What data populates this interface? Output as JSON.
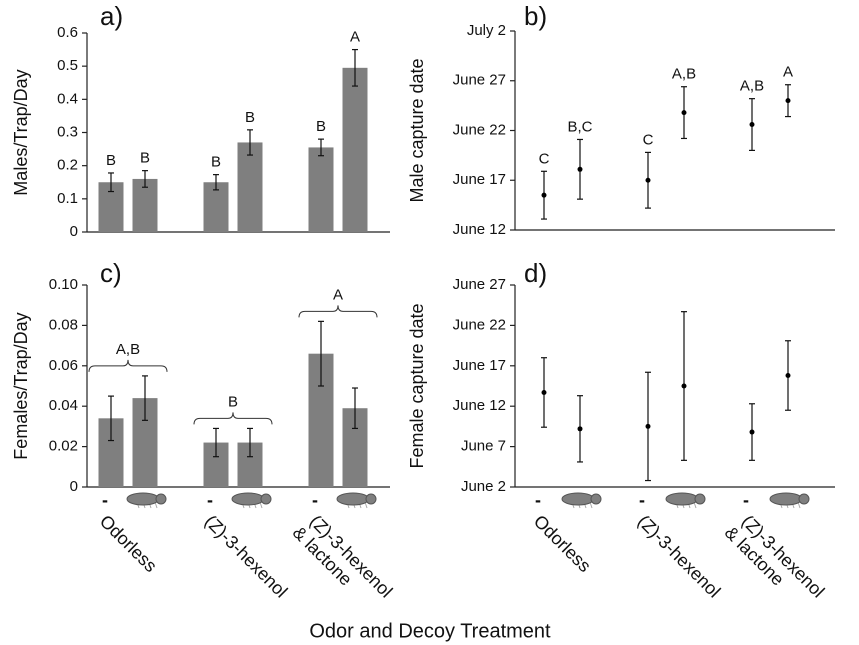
{
  "figure": {
    "xlabel": "Odor and Decoy Treatment",
    "group_labels": [
      [
        "Odorless"
      ],
      [
        "(Z)-3-hexenol"
      ],
      [
        "(Z)-3-hexenol",
        "& lactone"
      ]
    ]
  },
  "chart_data": [
    {
      "type": "bar",
      "panel_label": "a)",
      "ylabel": "Males/Trap/Day",
      "color": "#7f7f7f",
      "values": [
        0.15,
        0.16,
        0.15,
        0.27,
        0.255,
        0.495
      ],
      "errors": [
        0.028,
        0.025,
        0.023,
        0.038,
        0.025,
        0.055
      ],
      "annotations": [
        "B",
        "B",
        "B",
        "B",
        "B",
        "A"
      ],
      "ylim": [
        0,
        0.6
      ],
      "yticks": [
        0,
        0.1,
        0.2,
        0.3,
        0.4,
        0.5,
        0.6
      ]
    },
    {
      "type": "errorbar",
      "panel_label": "b)",
      "ylabel": "Male capture date",
      "color": "#000000",
      "values": [
        15.5,
        18.1,
        17,
        23.8,
        22.6,
        25
      ],
      "errors": [
        2.4,
        3,
        2.8,
        2.6,
        2.6,
        1.6
      ],
      "annotations": [
        "C",
        "B,C",
        "C",
        "A,B",
        "A,B",
        "A"
      ],
      "ylim": [
        12,
        32
      ],
      "yticks": [
        {
          "value": 12,
          "label": "June 12"
        },
        {
          "value": 17,
          "label": "June 17"
        },
        {
          "value": 22,
          "label": "June 22"
        },
        {
          "value": 27,
          "label": "June 27"
        },
        {
          "value": 32,
          "label": "July 2"
        }
      ]
    },
    {
      "type": "bar",
      "panel_label": "c)",
      "ylabel": "Females/Trap/Day",
      "color": "#7f7f7f",
      "categories": [
        "-",
        null,
        "-",
        null,
        "-",
        null
      ],
      "values": [
        0.034,
        0.044,
        0.022,
        0.022,
        0.066,
        0.039
      ],
      "errors": [
        0.011,
        0.011,
        0.007,
        0.007,
        0.016,
        0.01
      ],
      "group_annotations": [
        "A,B",
        "B",
        "A"
      ],
      "ylim": [
        0,
        0.1
      ],
      "yticks": [
        0,
        0.02,
        0.04,
        0.06,
        0.08,
        {
          "value": 0.1,
          "label": "0.10"
        }
      ]
    },
    {
      "type": "errorbar",
      "panel_label": "d)",
      "ylabel": "Female capture date",
      "color": "#000000",
      "categories": [
        "-",
        null,
        "-",
        null,
        "-",
        null
      ],
      "values": [
        13.7,
        9.2,
        9.5,
        14.5,
        8.8,
        15.8
      ],
      "errors": [
        4.3,
        4.1,
        6.7,
        9.2,
        3.5,
        4.3
      ],
      "ylim": [
        2,
        27
      ],
      "yticks": [
        {
          "value": 2,
          "label": "June 2"
        },
        {
          "value": 7,
          "label": "June 7"
        },
        {
          "value": 12,
          "label": "June 12"
        },
        {
          "value": 17,
          "label": "June 17"
        },
        {
          "value": 22,
          "label": "June 22"
        },
        {
          "value": 27,
          "label": "June 27"
        }
      ]
    }
  ]
}
